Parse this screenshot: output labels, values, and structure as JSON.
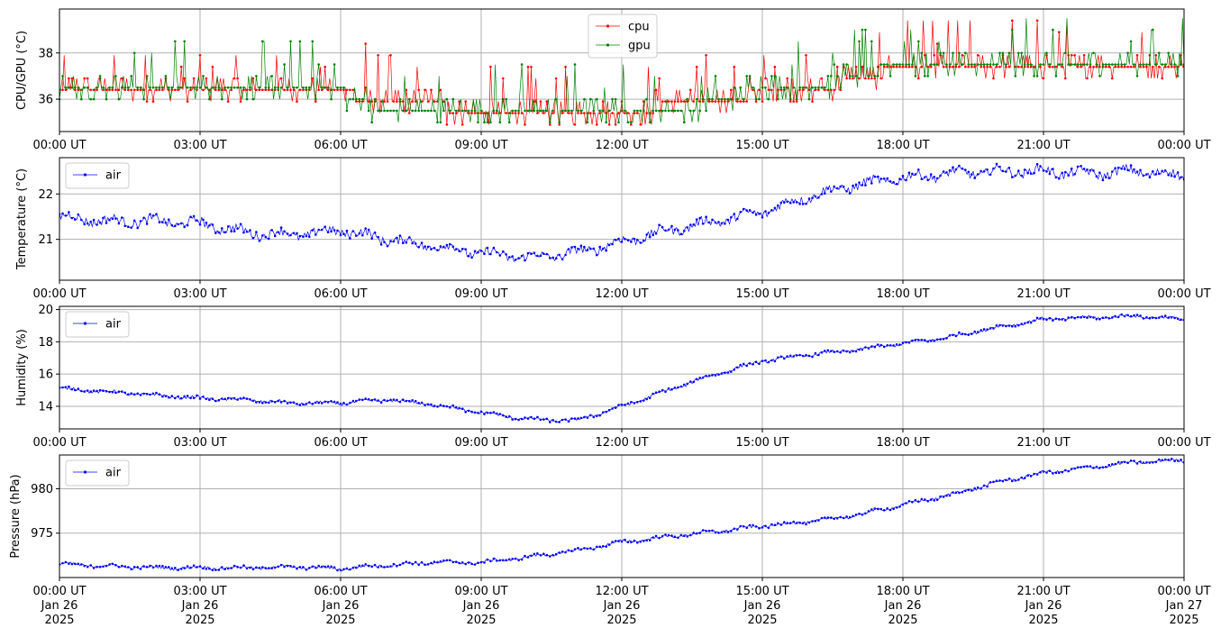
{
  "chart_data": [
    {
      "type": "line",
      "ylabel": "CPU/GPU (°C)",
      "ylim": [
        34.6,
        39.9
      ],
      "yticks": [
        36,
        38
      ],
      "xlim": [
        "2025-01-26T00:00",
        "2025-01-27T00:00"
      ],
      "xtick_labels": [
        "00:00 UT",
        "03:00 UT",
        "06:00 UT",
        "09:00 UT",
        "12:00 UT",
        "15:00 UT",
        "18:00 UT",
        "21:00 UT",
        "00:00 UT"
      ],
      "legend": "top-center",
      "grid": true,
      "series": [
        {
          "name": "cpu",
          "color": "#ff0000",
          "x": [
            "00:00",
            "01:00",
            "02:00",
            "03:00",
            "04:00",
            "05:00",
            "06:00",
            "07:00",
            "08:00",
            "09:00",
            "10:00",
            "11:00",
            "12:00",
            "13:00",
            "14:00",
            "15:00",
            "16:00",
            "17:00",
            "18:00",
            "19:00",
            "20:00",
            "21:00",
            "22:00",
            "23:00",
            "24:00"
          ],
          "y": [
            36.4,
            36.4,
            36.4,
            36.4,
            36.4,
            36.4,
            36.4,
            35.9,
            35.9,
            35.4,
            35.4,
            35.4,
            35.4,
            35.9,
            35.9,
            36.4,
            36.4,
            36.9,
            37.5,
            37.5,
            37.5,
            37.5,
            37.5,
            37.5,
            37.5
          ]
        },
        {
          "name": "gpu",
          "color": "#008000",
          "x": [
            "00:00",
            "01:00",
            "02:00",
            "03:00",
            "04:00",
            "05:00",
            "06:00",
            "07:00",
            "08:00",
            "09:00",
            "10:00",
            "11:00",
            "12:00",
            "13:00",
            "14:00",
            "15:00",
            "16:00",
            "17:00",
            "18:00",
            "19:00",
            "20:00",
            "21:00",
            "22:00",
            "23:00",
            "24:00"
          ],
          "y": [
            36.4,
            36.4,
            36.4,
            36.4,
            36.4,
            36.4,
            36.4,
            35.4,
            35.4,
            35.4,
            35.4,
            35.4,
            35.4,
            35.4,
            35.9,
            36.4,
            36.4,
            37.0,
            37.5,
            37.5,
            37.5,
            37.5,
            37.5,
            37.5,
            37.5
          ]
        }
      ]
    },
    {
      "type": "line",
      "ylabel": "Temperature (°C)",
      "ylim": [
        20.1,
        22.8
      ],
      "yticks": [
        21,
        22
      ],
      "xlim": [
        "2025-01-26T00:00",
        "2025-01-27T00:00"
      ],
      "xtick_labels": [
        "00:00 UT",
        "03:00 UT",
        "06:00 UT",
        "09:00 UT",
        "12:00 UT",
        "15:00 UT",
        "18:00 UT",
        "21:00 UT",
        "00:00 UT"
      ],
      "legend": "top-left",
      "grid": true,
      "series": [
        {
          "name": "air",
          "color": "#0000ff",
          "x": [
            "00:00",
            "01:00",
            "02:00",
            "03:00",
            "04:00",
            "05:00",
            "06:00",
            "07:00",
            "08:00",
            "09:00",
            "10:00",
            "11:00",
            "12:00",
            "13:00",
            "14:00",
            "15:00",
            "16:00",
            "17:00",
            "18:00",
            "19:00",
            "20:00",
            "21:00",
            "22:00",
            "23:00",
            "24:00"
          ],
          "y": [
            21.5,
            21.4,
            21.4,
            21.35,
            21.15,
            21.1,
            21.2,
            21.0,
            20.85,
            20.7,
            20.6,
            20.7,
            20.95,
            21.2,
            21.4,
            21.6,
            21.95,
            22.2,
            22.35,
            22.45,
            22.5,
            22.5,
            22.45,
            22.5,
            22.4
          ]
        }
      ]
    },
    {
      "type": "line",
      "ylabel": "Humidity (%)",
      "ylim": [
        12.6,
        20.2
      ],
      "yticks": [
        14,
        16,
        18,
        20
      ],
      "xlim": [
        "2025-01-26T00:00",
        "2025-01-27T00:00"
      ],
      "xtick_labels": [
        "00:00 UT",
        "03:00 UT",
        "06:00 UT",
        "09:00 UT",
        "12:00 UT",
        "15:00 UT",
        "18:00 UT",
        "21:00 UT",
        "00:00 UT"
      ],
      "legend": "top-left",
      "grid": true,
      "series": [
        {
          "name": "air",
          "color": "#0000ff",
          "x": [
            "00:00",
            "01:00",
            "02:00",
            "03:00",
            "04:00",
            "05:00",
            "06:00",
            "07:00",
            "08:00",
            "09:00",
            "10:00",
            "11:00",
            "12:00",
            "13:00",
            "14:00",
            "15:00",
            "16:00",
            "17:00",
            "18:00",
            "19:00",
            "20:00",
            "21:00",
            "22:00",
            "23:00",
            "24:00"
          ],
          "y": [
            15.1,
            14.9,
            14.7,
            14.5,
            14.4,
            14.2,
            14.2,
            14.4,
            14.1,
            13.6,
            13.2,
            13.1,
            14.0,
            15.0,
            16.0,
            16.8,
            17.2,
            17.5,
            17.9,
            18.3,
            18.9,
            19.4,
            19.5,
            19.6,
            19.4
          ]
        }
      ]
    },
    {
      "type": "line",
      "ylabel": "Pressure (hPa)",
      "ylim": [
        970.0,
        983.8
      ],
      "yticks": [
        975,
        980
      ],
      "xlim": [
        "2025-01-26T00:00",
        "2025-01-27T00:00"
      ],
      "xtick_labels": [
        "00:00 UT\nJan 26\n2025",
        "03:00 UT\nJan 26\n2025",
        "06:00 UT\nJan 26\n2025",
        "09:00 UT\nJan 26\n2025",
        "12:00 UT\nJan 26\n2025",
        "15:00 UT\nJan 26\n2025",
        "18:00 UT\nJan 26\n2025",
        "21:00 UT\nJan 26\n2025",
        "00:00 UT\nJan 27\n2025"
      ],
      "legend": "top-left",
      "grid": true,
      "series": [
        {
          "name": "air",
          "color": "#0000ff",
          "x": [
            "00:00",
            "01:00",
            "02:00",
            "03:00",
            "04:00",
            "05:00",
            "06:00",
            "07:00",
            "08:00",
            "09:00",
            "10:00",
            "11:00",
            "12:00",
            "13:00",
            "14:00",
            "15:00",
            "16:00",
            "17:00",
            "18:00",
            "19:00",
            "20:00",
            "21:00",
            "22:00",
            "23:00",
            "24:00"
          ],
          "y": [
            971.5,
            971.3,
            971.1,
            971.1,
            971.1,
            971.2,
            971.0,
            971.4,
            971.7,
            971.7,
            972.3,
            973.0,
            974.0,
            974.6,
            975.2,
            975.8,
            976.3,
            977.0,
            978.2,
            979.3,
            980.7,
            981.8,
            982.4,
            983.0,
            983.2
          ]
        }
      ]
    }
  ]
}
